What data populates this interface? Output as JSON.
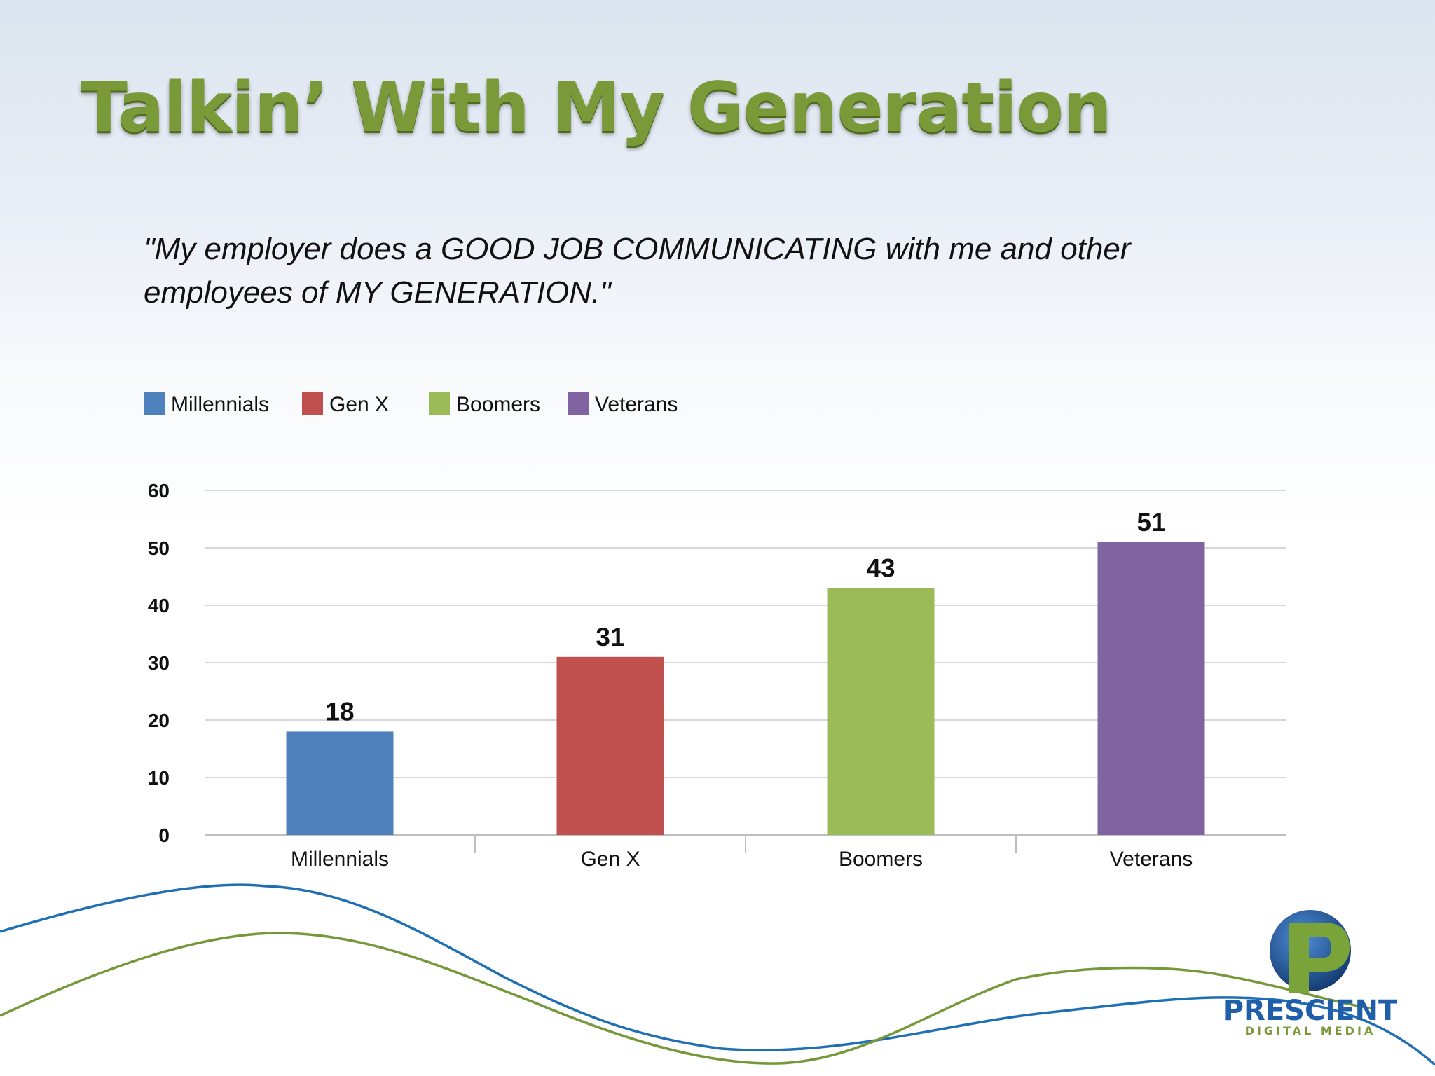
{
  "slide": {
    "title": "Talkin’ With My Generation",
    "quote": "\"My employer does a GOOD JOB COMMUNICATING with me and other employees of MY GENERATION.\""
  },
  "logo": {
    "name": "PRESCIENT",
    "tagline": "DIGITAL MEDIA"
  },
  "colors": {
    "title": "#7a9a3a",
    "wave_blue": "#1f6fb5",
    "wave_green": "#77983a"
  },
  "chart_data": {
    "type": "bar",
    "categories": [
      "Millennials",
      "Gen X",
      "Boomers",
      "Veterans"
    ],
    "values": [
      18,
      31,
      43,
      51
    ],
    "colors": [
      "#4f81bd",
      "#c0504d",
      "#9bbb59",
      "#8064a2"
    ],
    "legend": [
      "Millennials",
      "Gen X",
      "Boomers",
      "Veterans"
    ],
    "legend_position": "top-left",
    "ylim": [
      0,
      60
    ],
    "yticks": [
      "0",
      "10",
      "20",
      "30",
      "40",
      "50",
      "60"
    ],
    "grid": true,
    "data_labels": [
      "18",
      "31",
      "43",
      "51"
    ]
  }
}
